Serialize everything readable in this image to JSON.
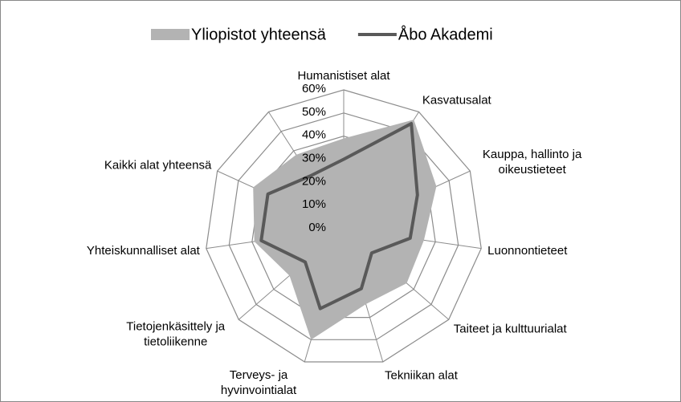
{
  "chart_data": {
    "type": "radar",
    "categories": [
      "Humanistiset alat",
      "Kasvatusalat",
      "Kauppa, hallinto ja oikeustieteet",
      "Luonnontieteet",
      "Taiteet ja kulttuurialat",
      "Tekniikan alat",
      "Terveys- ja hyvinvointialat",
      "Tietojenkäsittely ja tietoliikenne",
      "Yhteiskunnalliset alat",
      "Kaikki alat yhteensä",
      null
    ],
    "series": [
      {
        "name": "Yliopistot yhteensä",
        "color": "#b3b3b3",
        "style": "area",
        "values": [
          39,
          56,
          44,
          35,
          36,
          34,
          50,
          31,
          39,
          43,
          38
        ]
      },
      {
        "name": "Åbo Akademi",
        "color": "#595959",
        "style": "line",
        "values": [
          30,
          54,
          35,
          29,
          16,
          27,
          36,
          22,
          36,
          36,
          27
        ]
      }
    ],
    "ylim": [
      0,
      60
    ],
    "yticks": [
      {
        "value": 0,
        "label": "0%"
      },
      {
        "value": 10,
        "label": "10%"
      },
      {
        "value": 20,
        "label": "20%"
      },
      {
        "value": 30,
        "label": "30%"
      },
      {
        "value": 40,
        "label": "40%"
      },
      {
        "value": 50,
        "label": "50%"
      },
      {
        "value": 60,
        "label": "60%"
      }
    ],
    "grid": true,
    "legend": "top"
  }
}
